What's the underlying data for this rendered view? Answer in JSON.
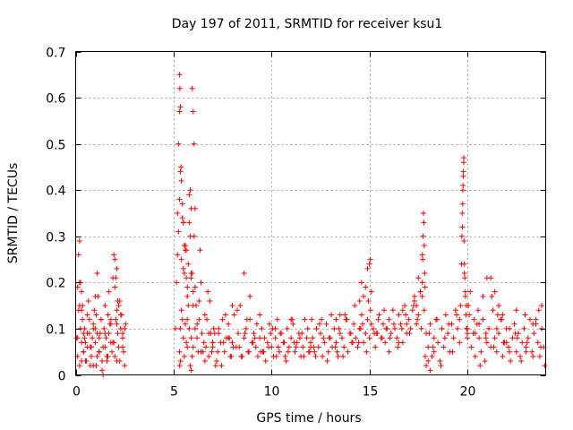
{
  "chart_data": {
    "type": "scatter",
    "title": "Day 197 of 2011, SRMTID for receiver ksu1",
    "xlabel": "GPS time / hours",
    "ylabel": "SRMTID / TECUs",
    "xlim": [
      0,
      24
    ],
    "ylim": [
      0,
      0.7
    ],
    "grid": true,
    "marker": "+",
    "color": "#ff0000",
    "x_ticks": [
      "0",
      "5",
      "10",
      "15",
      "20"
    ],
    "x_tick_values": [
      0,
      5,
      10,
      15,
      20
    ],
    "y_ticks": [
      "0",
      "0.1",
      "0.2",
      "0.3",
      "0.4",
      "0.5",
      "0.6",
      "0.7"
    ],
    "y_tick_values": [
      0,
      0.1,
      0.2,
      0.3,
      0.4,
      0.5,
      0.6,
      0.7
    ],
    "series": [
      {
        "name": "SRMTID",
        "x": [
          0.05,
          0.1,
          0.15,
          0.2,
          0.25,
          0.3,
          0.35,
          0.4,
          0.45,
          0.5,
          0.55,
          0.6,
          0.65,
          0.7,
          0.75,
          0.8,
          0.85,
          0.9,
          0.95,
          1.0,
          1.05,
          1.1,
          1.15,
          1.2,
          1.25,
          1.3,
          1.35,
          1.4,
          1.45,
          1.5,
          1.55,
          1.6,
          1.65,
          1.7,
          1.75,
          1.8,
          1.85,
          1.9,
          1.95,
          2.0,
          2.05,
          2.1,
          2.15,
          2.2,
          2.25,
          2.3,
          2.35,
          2.4,
          2.45,
          2.5,
          2.55,
          0.1,
          0.15,
          0.2,
          0.25,
          0.3,
          0.35,
          0.4,
          0.5,
          0.6,
          0.7,
          0.8,
          0.9,
          1.0,
          1.1,
          1.2,
          1.3,
          1.4,
          1.5,
          1.6,
          1.7,
          1.8,
          1.9,
          2.0,
          2.1,
          2.2,
          2.3,
          2.4,
          2.5,
          0.2,
          0.3,
          0.45,
          0.6,
          0.75,
          0.9,
          1.05,
          1.2,
          1.35,
          1.5,
          1.65,
          1.8,
          1.95,
          2.1,
          2.25,
          2.4,
          0.1,
          0.2,
          0.3,
          0.4,
          1.0,
          1.1,
          1.2,
          2.0,
          2.05,
          2.1,
          2.15,
          5.1,
          5.15,
          5.2,
          5.25,
          5.3,
          5.35,
          5.4,
          5.45,
          5.5,
          5.55,
          5.6,
          5.65,
          5.7,
          5.75,
          5.8,
          5.85,
          5.9,
          5.95,
          6.0,
          6.05,
          6.1,
          6.15,
          6.2,
          6.25,
          6.3,
          6.35,
          6.4,
          6.45,
          6.5,
          6.55,
          6.6,
          6.65,
          6.7,
          6.75,
          6.8,
          6.85,
          6.9,
          6.95,
          7.0,
          5.3,
          5.32,
          5.35,
          5.38,
          5.4,
          5.45,
          5.5,
          5.55,
          5.6,
          5.65,
          5.7,
          5.75,
          5.8,
          5.85,
          5.9,
          5.95,
          6.0,
          6.05,
          6.1,
          5.3,
          5.31,
          5.35,
          5.36,
          5.9,
          5.95,
          6.0,
          5.4,
          5.45,
          5.5,
          5.55,
          5.6,
          5.65,
          5.7,
          5.8,
          5.85,
          5.9,
          6.0,
          6.2,
          6.4,
          6.6,
          6.8,
          7.0,
          5.2,
          5.25,
          5.3,
          5.5,
          5.7,
          5.9,
          6.1,
          6.3,
          7.0,
          7.1,
          7.2,
          7.3,
          7.4,
          7.5,
          7.6,
          7.7,
          7.8,
          7.9,
          8.0,
          8.1,
          8.2,
          8.3,
          8.4,
          8.5,
          8.6,
          8.7,
          8.8,
          8.9,
          9.0,
          9.1,
          9.2,
          9.3,
          9.4,
          9.5,
          9.6,
          9.7,
          9.8,
          9.9,
          10.0,
          10.1,
          10.2,
          10.3,
          10.4,
          10.5,
          10.6,
          10.7,
          10.8,
          10.9,
          11.0,
          11.1,
          11.2,
          11.3,
          11.4,
          11.5,
          11.6,
          11.7,
          11.8,
          11.9,
          12.0,
          7.05,
          7.25,
          7.45,
          7.65,
          7.85,
          8.05,
          8.25,
          8.45,
          8.65,
          8.85,
          9.05,
          9.25,
          9.45,
          9.65,
          9.85,
          10.05,
          10.25,
          10.45,
          10.65,
          10.85,
          11.05,
          11.25,
          11.45,
          11.65,
          11.85,
          7.15,
          7.55,
          7.95,
          8.35,
          8.75,
          9.15,
          9.55,
          9.95,
          10.35,
          10.75,
          11.15,
          11.55,
          11.95,
          7.8,
          8.6,
          9.4,
          10.2,
          11.0,
          7.3,
          8.0,
          8.9,
          12.0,
          12.1,
          12.2,
          12.3,
          12.4,
          12.5,
          12.6,
          12.7,
          12.8,
          12.9,
          13.0,
          13.1,
          13.2,
          13.3,
          13.4,
          13.5,
          13.6,
          13.7,
          13.8,
          13.9,
          14.0,
          14.1,
          14.2,
          14.3,
          14.4,
          14.5,
          14.6,
          14.7,
          14.8,
          14.9,
          15.0,
          15.1,
          15.2,
          15.3,
          15.4,
          15.5,
          15.6,
          15.7,
          15.8,
          15.9,
          16.0,
          12.05,
          12.25,
          12.45,
          12.65,
          12.85,
          13.05,
          13.25,
          13.45,
          13.65,
          13.85,
          14.05,
          14.25,
          14.45,
          14.65,
          14.85,
          15.05,
          15.25,
          15.45,
          15.65,
          15.85,
          12.15,
          12.55,
          12.95,
          13.35,
          13.75,
          14.15,
          14.55,
          14.95,
          15.35,
          15.75,
          14.8,
          14.9,
          15.0,
          15.05,
          15.1,
          14.6,
          14.7,
          14.5,
          13.5,
          13.3,
          16.0,
          16.1,
          16.2,
          16.3,
          16.4,
          16.5,
          16.6,
          16.7,
          16.8,
          16.9,
          17.0,
          17.1,
          17.2,
          17.3,
          17.4,
          17.5,
          17.6,
          17.7,
          17.8,
          17.9,
          18.0,
          18.1,
          18.2,
          18.3,
          18.4,
          18.5,
          18.6,
          18.7,
          18.8,
          18.9,
          19.0,
          19.1,
          19.2,
          19.3,
          19.4,
          19.5,
          19.6,
          16.05,
          16.25,
          16.45,
          16.65,
          16.85,
          17.05,
          17.25,
          17.45,
          17.65,
          17.85,
          18.05,
          18.25,
          18.45,
          18.65,
          18.85,
          19.05,
          19.25,
          19.45,
          17.7,
          17.72,
          17.74,
          17.76,
          17.78,
          17.8,
          17.82,
          17.84,
          17.7,
          17.6,
          17.5,
          17.4,
          17.3,
          16.5,
          16.7,
          16.9,
          18.1,
          18.3,
          17.9,
          18.0,
          19.6,
          19.65,
          19.7,
          19.72,
          19.74,
          19.76,
          19.78,
          19.8,
          19.82,
          19.85,
          19.9,
          19.95,
          20.0,
          19.75,
          19.77,
          19.79,
          19.81,
          19.83,
          19.85,
          19.87,
          19.9,
          19.93,
          19.96,
          20.0,
          20.0,
          20.1,
          20.2,
          20.3,
          20.4,
          20.5,
          20.6,
          20.7,
          20.8,
          20.9,
          21.0,
          21.1,
          21.2,
          21.3,
          21.4,
          21.5,
          21.6,
          21.7,
          21.8,
          21.9,
          22.0,
          22.1,
          22.2,
          22.3,
          22.4,
          22.5,
          22.6,
          22.7,
          22.8,
          22.9,
          23.0,
          23.1,
          23.2,
          23.3,
          23.4,
          23.5,
          23.6,
          23.7,
          23.8,
          23.9,
          20.05,
          20.35,
          20.65,
          20.95,
          21.25,
          21.55,
          21.85,
          22.15,
          22.45,
          22.75,
          23.05,
          23.35,
          23.65,
          23.95,
          20.15,
          20.55,
          20.95,
          21.35,
          21.75,
          22.15,
          22.55,
          22.95,
          23.35,
          23.75,
          20.8,
          21.0,
          21.2,
          21.4,
          21.6,
          21.8,
          20.6,
          20.4,
          21.5,
          22.0,
          22.5,
          23.0,
          23.5,
          23.8
        ],
        "y": [
          0.08,
          0.19,
          0.26,
          0.29,
          0.2,
          0.18,
          0.12,
          0.05,
          0.1,
          0.07,
          0.03,
          0.13,
          0.16,
          0.09,
          0.06,
          0.04,
          0.08,
          0.11,
          0.14,
          0.07,
          0.02,
          0.22,
          0.17,
          0.05,
          0.09,
          0.12,
          0.03,
          0.06,
          0.1,
          0.15,
          0.08,
          0.04,
          0.13,
          0.18,
          0.11,
          0.07,
          0.05,
          0.21,
          0.26,
          0.25,
          0.12,
          0.14,
          0.09,
          0.06,
          0.03,
          0.1,
          0.13,
          0.08,
          0.05,
          0.02,
          0.11,
          0.04,
          0.14,
          0.02,
          0.1,
          0.07,
          0.15,
          0.05,
          0.03,
          0.09,
          0.12,
          0.06,
          0.02,
          0.1,
          0.04,
          0.08,
          0.12,
          0.0,
          0.06,
          0.03,
          0.09,
          0.12,
          0.07,
          0.04,
          0.11,
          0.15,
          0.13,
          0.06,
          0.1,
          0.15,
          0.03,
          0.08,
          0.06,
          0.02,
          0.1,
          0.13,
          0.05,
          0.01,
          0.09,
          0.04,
          0.11,
          0.07,
          0.03,
          0.16,
          0.09,
          0.08,
          0.2,
          0.14,
          0.09,
          0.17,
          0.09,
          0.05,
          0.19,
          0.21,
          0.23,
          0.16,
          0.1,
          0.2,
          0.35,
          0.5,
          0.57,
          0.44,
          0.25,
          0.37,
          0.33,
          0.22,
          0.28,
          0.27,
          0.12,
          0.15,
          0.39,
          0.4,
          0.36,
          0.22,
          0.18,
          0.3,
          0.1,
          0.15,
          0.08,
          0.05,
          0.12,
          0.27,
          0.2,
          0.09,
          0.05,
          0.07,
          0.03,
          0.06,
          0.12,
          0.18,
          0.04,
          0.16,
          0.09,
          0.05,
          0.07,
          0.65,
          0.62,
          0.58,
          0.45,
          0.42,
          0.34,
          0.33,
          0.28,
          0.27,
          0.21,
          0.19,
          0.24,
          0.33,
          0.3,
          0.22,
          0.62,
          0.57,
          0.5,
          0.36,
          0.05,
          0.02,
          0.1,
          0.03,
          0.01,
          0.04,
          0.06,
          0.14,
          0.12,
          0.08,
          0.04,
          0.11,
          0.07,
          0.06,
          0.1,
          0.02,
          0.08,
          0.15,
          0.11,
          0.05,
          0.13,
          0.09,
          0.07,
          0.26,
          0.31,
          0.38,
          0.23,
          0.17,
          0.21,
          0.19,
          0.16,
          0.06,
          0.09,
          0.03,
          0.1,
          0.07,
          0.12,
          0.05,
          0.08,
          0.11,
          0.04,
          0.07,
          0.13,
          0.06,
          0.09,
          0.15,
          0.04,
          0.08,
          0.1,
          0.05,
          0.12,
          0.07,
          0.09,
          0.06,
          0.04,
          0.08,
          0.1,
          0.05,
          0.03,
          0.07,
          0.11,
          0.06,
          0.04,
          0.08,
          0.12,
          0.05,
          0.09,
          0.07,
          0.04,
          0.1,
          0.06,
          0.08,
          0.11,
          0.05,
          0.07,
          0.09,
          0.04,
          0.06,
          0.12,
          0.08,
          0.05,
          0.07,
          0.1,
          0.05,
          0.02,
          0.13,
          0.08,
          0.06,
          0.14,
          0.04,
          0.09,
          0.05,
          0.07,
          0.11,
          0.05,
          0.08,
          0.06,
          0.1,
          0.04,
          0.09,
          0.07,
          0.05,
          0.12,
          0.06,
          0.08,
          0.04,
          0.1,
          0.02,
          0.07,
          0.04,
          0.06,
          0.12,
          0.08,
          0.05,
          0.09,
          0.06,
          0.03,
          0.07,
          0.09,
          0.05,
          0.08,
          0.22,
          0.13,
          0.1,
          0.12,
          0.09,
          0.15,
          0.17,
          0.06,
          0.08,
          0.05,
          0.1,
          0.06,
          0.09,
          0.04,
          0.07,
          0.11,
          0.05,
          0.08,
          0.06,
          0.1,
          0.07,
          0.04,
          0.09,
          0.08,
          0.06,
          0.12,
          0.05,
          0.09,
          0.07,
          0.11,
          0.08,
          0.06,
          0.1,
          0.13,
          0.07,
          0.09,
          0.12,
          0.08,
          0.11,
          0.1,
          0.06,
          0.09,
          0.13,
          0.08,
          0.11,
          0.07,
          0.1,
          0.05,
          0.12,
          0.04,
          0.11,
          0.08,
          0.03,
          0.13,
          0.06,
          0.1,
          0.04,
          0.12,
          0.09,
          0.15,
          0.07,
          0.11,
          0.05,
          0.14,
          0.09,
          0.12,
          0.08,
          0.1,
          0.06,
          0.12,
          0.08,
          0.05,
          0.13,
          0.07,
          0.1,
          0.16,
          0.09,
          0.14,
          0.19,
          0.23,
          0.24,
          0.25,
          0.18,
          0.2,
          0.17,
          0.16,
          0.13,
          0.12,
          0.12,
          0.09,
          0.14,
          0.1,
          0.08,
          0.13,
          0.11,
          0.07,
          0.15,
          0.09,
          0.12,
          0.1,
          0.14,
          0.16,
          0.11,
          0.13,
          0.18,
          0.17,
          0.14,
          0.09,
          0.06,
          0.11,
          0.04,
          0.08,
          0.12,
          0.07,
          0.03,
          0.1,
          0.06,
          0.13,
          0.09,
          0.05,
          0.11,
          0.08,
          0.14,
          0.1,
          0.07,
          0.08,
          0.11,
          0.06,
          0.1,
          0.13,
          0.09,
          0.15,
          0.12,
          0.1,
          0.04,
          0.09,
          0.06,
          0.12,
          0.02,
          0.08,
          0.11,
          0.05,
          0.13,
          0.2,
          0.25,
          0.3,
          0.35,
          0.33,
          0.28,
          0.22,
          0.19,
          0.26,
          0.18,
          0.21,
          0.15,
          0.17,
          0.07,
          0.14,
          0.11,
          0.01,
          0.05,
          0.02,
          0.03,
          0.12,
          0.15,
          0.24,
          0.3,
          0.35,
          0.37,
          0.41,
          0.44,
          0.47,
          0.22,
          0.18,
          0.15,
          0.09,
          0.32,
          0.4,
          0.43,
          0.46,
          0.29,
          0.24,
          0.21,
          0.17,
          0.13,
          0.1,
          0.08,
          0.1,
          0.13,
          0.06,
          0.09,
          0.04,
          0.11,
          0.08,
          0.05,
          0.12,
          0.03,
          0.07,
          0.1,
          0.06,
          0.14,
          0.08,
          0.05,
          0.09,
          0.12,
          0.04,
          0.07,
          0.1,
          0.06,
          0.03,
          0.08,
          0.11,
          0.05,
          0.09,
          0.04,
          0.07,
          0.1,
          0.06,
          0.08,
          0.12,
          0.05,
          0.09,
          0.11,
          0.07,
          0.04,
          0.1,
          0.06,
          0.15,
          0.12,
          0.02,
          0.08,
          0.17,
          0.13,
          0.07,
          0.05,
          0.09,
          0.03,
          0.07,
          0.11,
          0.14,
          0.02,
          0.18,
          0.14,
          0.09,
          0.06,
          0.12,
          0.1,
          0.08,
          0.13,
          0.04,
          0.06,
          0.17,
          0.21,
          0.21,
          0.18,
          0.15,
          0.13,
          0.11,
          0.09,
          0.1,
          0.07,
          0.14,
          0.05,
          0.12,
          0.15
        ]
      }
    ]
  }
}
